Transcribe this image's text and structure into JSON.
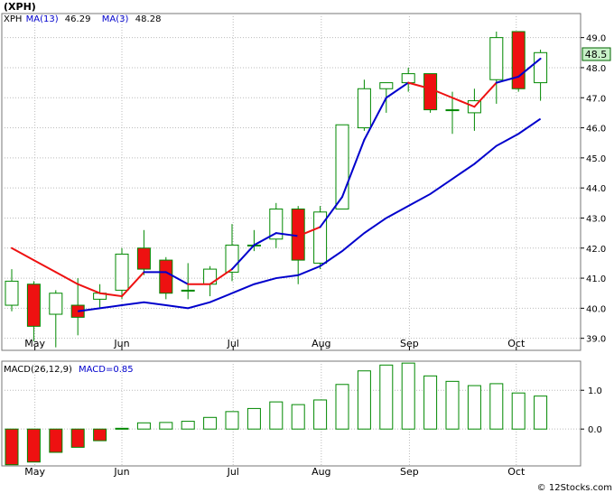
{
  "header": {
    "symbol": "(XPH)",
    "legend_items": [
      {
        "label": "XPH",
        "color": "#000000"
      },
      {
        "label": "MA(13)",
        "value": "46.29",
        "color": "#0000cc"
      },
      {
        "label": "MA(3)",
        "value": "48.28",
        "color": "#0000cc"
      }
    ]
  },
  "macd_legend": {
    "label": "MACD(26,12,9)",
    "value_label": "MACD=0.85"
  },
  "last_price_tag": "48.5",
  "footer": "© 12Stocks.com",
  "colors": {
    "up": "#ffffff",
    "down": "#ee1111",
    "border": "#008800",
    "ma_long": "#0000cc",
    "ma_short_up": "#0000cc",
    "ma_short_down": "#ee1111",
    "grid": "#bbbbbb"
  },
  "chart_data": [
    {
      "type": "candlestick",
      "series_name": "XPH",
      "x_labels": [
        "May",
        "Jun",
        "Jul",
        "Aug",
        "Sep",
        "Oct"
      ],
      "y_ticks": [
        "39.0",
        "40.0",
        "41.0",
        "42.0",
        "43.0",
        "44.0",
        "45.0",
        "46.0",
        "47.0",
        "48.0",
        "49.0"
      ],
      "ylim": [
        38.6,
        49.8
      ],
      "candles": [
        {
          "o": 40.1,
          "h": 41.3,
          "l": 39.9,
          "c": 40.9
        },
        {
          "o": 40.8,
          "h": 40.9,
          "l": 38.9,
          "c": 39.4
        },
        {
          "o": 39.8,
          "h": 40.6,
          "l": 38.7,
          "c": 40.5
        },
        {
          "o": 40.1,
          "h": 41.0,
          "l": 39.1,
          "c": 39.7
        },
        {
          "o": 40.3,
          "h": 40.8,
          "l": 40.0,
          "c": 40.5
        },
        {
          "o": 40.6,
          "h": 42.0,
          "l": 40.3,
          "c": 41.8
        },
        {
          "o": 42.0,
          "h": 42.6,
          "l": 41.1,
          "c": 41.3
        },
        {
          "o": 41.6,
          "h": 41.7,
          "l": 40.3,
          "c": 40.5
        },
        {
          "o": 40.6,
          "h": 41.5,
          "l": 40.3,
          "c": 40.6
        },
        {
          "o": 40.8,
          "h": 41.4,
          "l": 40.4,
          "c": 41.3
        },
        {
          "o": 41.2,
          "h": 42.8,
          "l": 40.9,
          "c": 42.1
        },
        {
          "o": 42.1,
          "h": 42.6,
          "l": 41.9,
          "c": 42.1
        },
        {
          "o": 42.3,
          "h": 43.5,
          "l": 42.0,
          "c": 43.3
        },
        {
          "o": 43.3,
          "h": 43.4,
          "l": 40.8,
          "c": 41.6
        },
        {
          "o": 41.5,
          "h": 43.4,
          "l": 41.3,
          "c": 43.2
        },
        {
          "o": 43.3,
          "h": 46.1,
          "l": 43.3,
          "c": 46.1
        },
        {
          "o": 46.0,
          "h": 47.6,
          "l": 45.9,
          "c": 47.3
        },
        {
          "o": 47.3,
          "h": 47.5,
          "l": 46.5,
          "c": 47.5
        },
        {
          "o": 47.5,
          "h": 48.0,
          "l": 47.2,
          "c": 47.8
        },
        {
          "o": 47.8,
          "h": 47.8,
          "l": 46.5,
          "c": 46.6
        },
        {
          "o": 46.6,
          "h": 47.2,
          "l": 45.8,
          "c": 46.6
        },
        {
          "o": 46.5,
          "h": 47.3,
          "l": 45.9,
          "c": 46.9
        },
        {
          "o": 47.6,
          "h": 49.2,
          "l": 46.8,
          "c": 49.0
        },
        {
          "o": 49.2,
          "h": 49.2,
          "l": 47.2,
          "c": 47.3
        },
        {
          "o": 47.5,
          "h": 48.6,
          "l": 46.9,
          "c": 48.5
        }
      ],
      "ma13": [
        null,
        null,
        null,
        39.9,
        40.0,
        40.1,
        40.2,
        40.1,
        40.0,
        40.2,
        40.5,
        40.8,
        41.0,
        41.1,
        41.4,
        41.9,
        42.5,
        43.0,
        43.4,
        43.8,
        44.3,
        44.8,
        45.4,
        45.8,
        46.3
      ],
      "ma3": [
        42.0,
        41.6,
        41.2,
        40.8,
        40.5,
        40.4,
        41.2,
        41.2,
        40.8,
        40.8,
        41.3,
        42.1,
        42.5,
        42.4,
        42.7,
        43.7,
        45.6,
        47.0,
        47.5,
        47.3,
        47.0,
        46.7,
        47.5,
        47.7,
        48.3
      ],
      "ma3_down": [
        true,
        true,
        true,
        true,
        true,
        true,
        false,
        false,
        true,
        true,
        false,
        false,
        false,
        true,
        false,
        false,
        false,
        false,
        true,
        true,
        true,
        true,
        false,
        false,
        false
      ]
    },
    {
      "type": "bar",
      "series_name": "MACD(26,12,9)",
      "y_ticks": [
        "1.0",
        "0.0"
      ],
      "ylim": [
        -0.95,
        1.75
      ],
      "values": [
        -0.92,
        -0.85,
        -0.6,
        -0.47,
        -0.3,
        0.02,
        0.16,
        0.17,
        0.2,
        0.3,
        0.45,
        0.53,
        0.7,
        0.63,
        0.75,
        1.15,
        1.5,
        1.65,
        1.7,
        1.37,
        1.23,
        1.12,
        1.17,
        0.93,
        0.85
      ]
    }
  ]
}
